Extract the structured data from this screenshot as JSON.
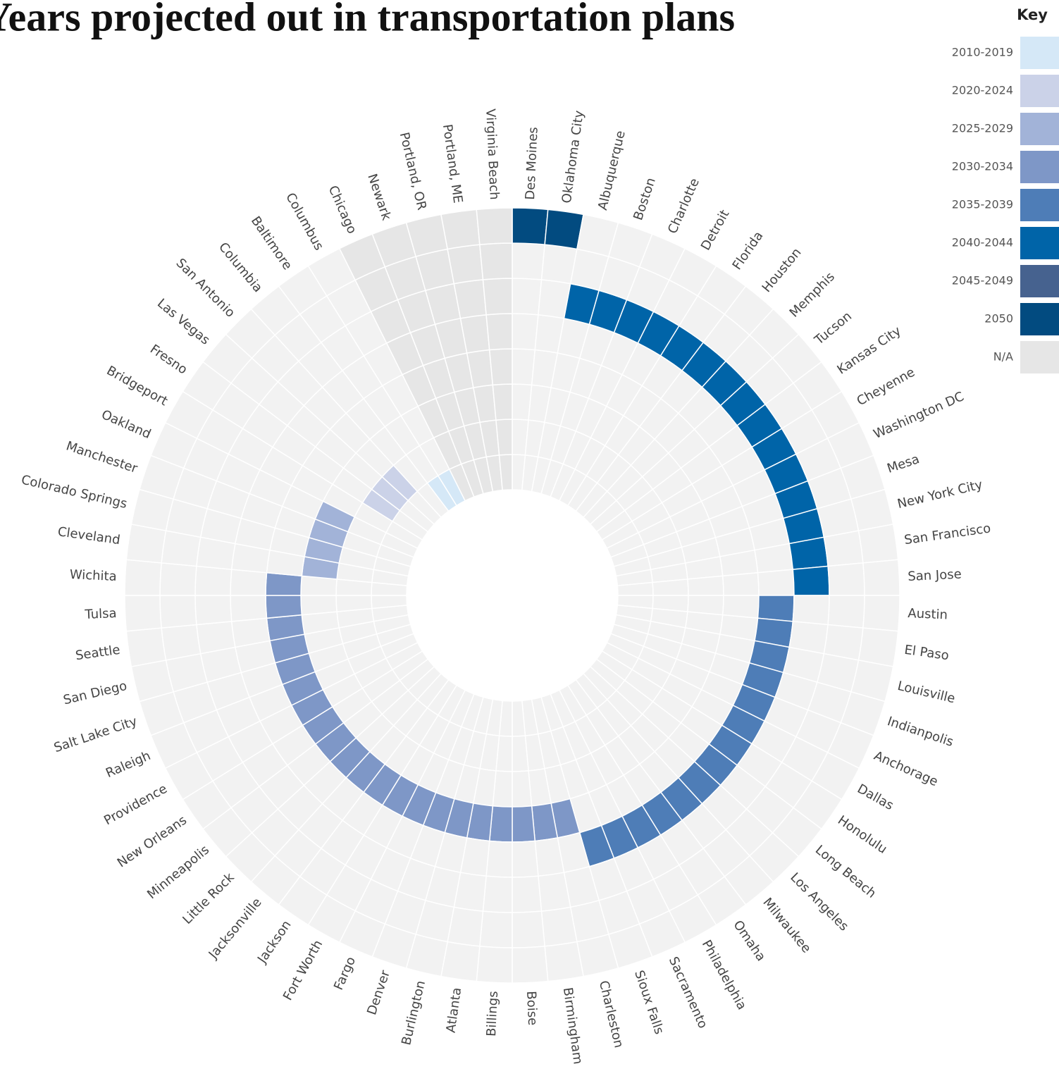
{
  "chart_data": {
    "type": "radial",
    "title": "Years projected out in transportation plans",
    "legend_title": "Key",
    "keys": [
      {
        "label": "2010-2019",
        "color": "#d5e8f7"
      },
      {
        "label": "2020-2024",
        "color": "#cbd2e8"
      },
      {
        "label": "2025-2029",
        "color": "#a2b3d8"
      },
      {
        "label": "2030-2034",
        "color": "#7e97c7"
      },
      {
        "label": "2035-2039",
        "color": "#4e7db7"
      },
      {
        "label": "2040-2044",
        "color": "#0064a8"
      },
      {
        "label": "2045-2049",
        "color": "#46628f"
      },
      {
        "label": "2050",
        "color": "#024b80"
      },
      {
        "label": "N/A",
        "color": "#e6e6e6"
      }
    ],
    "categories": [
      "Des Moines",
      "Oklahoma City",
      "Albuquerque",
      "Boston",
      "Charlotte",
      "Detroit",
      "Florida",
      "Houston",
      "Memphis",
      "Tucson",
      "Kansas City",
      "Cheyenne",
      "Washington DC",
      "Mesa",
      "New York City",
      "San Francisco",
      "San Jose",
      "Austin",
      "El Paso",
      "Louisville",
      "Indianpolis",
      "Anchorage",
      "Dallas",
      "Honolulu",
      "Long Beach",
      "Los Angeles",
      "Milwaukee",
      "Omaha",
      "Philadelphia",
      "Sacramento",
      "Sioux Falls",
      "Charleston",
      "Birmingham",
      "Boise",
      "Billings",
      "Atlanta",
      "Burlington",
      "Denver",
      "Fargo",
      "Fort Worth",
      "Jackson",
      "Jacksonville",
      "Little Rock",
      "Minneapolis",
      "New Orleans",
      "Providence",
      "Raleigh",
      "Salt Lake City",
      "San Diego",
      "Seattle",
      "Tulsa",
      "Wichita",
      "Cleveland",
      "Colorado Springs",
      "Manchester",
      "Oakland",
      "Bridgeport",
      "Fresno",
      "Las Vegas",
      "San Antonio",
      "Columbia",
      "Baltimore",
      "Columbus",
      "Chicago",
      "Newark",
      "Portland, OR",
      "Portland, ME",
      "Virginia Beach"
    ],
    "values": [
      "2050",
      "2050",
      "2040-2044",
      "2040-2044",
      "2040-2044",
      "2040-2044",
      "2040-2044",
      "2040-2044",
      "2040-2044",
      "2040-2044",
      "2040-2044",
      "2040-2044",
      "2040-2044",
      "2040-2044",
      "2040-2044",
      "2040-2044",
      "2040-2044",
      "2035-2039",
      "2035-2039",
      "2035-2039",
      "2035-2039",
      "2035-2039",
      "2035-2039",
      "2035-2039",
      "2035-2039",
      "2035-2039",
      "2035-2039",
      "2035-2039",
      "2035-2039",
      "2035-2039",
      "2035-2039",
      "2030-2034",
      "2030-2034",
      "2030-2034",
      "2030-2034",
      "2030-2034",
      "2030-2034",
      "2030-2034",
      "2030-2034",
      "2030-2034",
      "2030-2034",
      "2030-2034",
      "2030-2034",
      "2030-2034",
      "2030-2034",
      "2030-2034",
      "2030-2034",
      "2030-2034",
      "2030-2034",
      "2030-2034",
      "2030-2034",
      "2030-2034",
      "2025-2029",
      "2025-2029",
      "2025-2029",
      "2025-2029",
      null,
      "2020-2024",
      "2020-2024",
      "2020-2024",
      null,
      "2010-2019",
      "2010-2019",
      "N/A",
      "N/A",
      "N/A",
      "N/A",
      "N/A"
    ]
  }
}
